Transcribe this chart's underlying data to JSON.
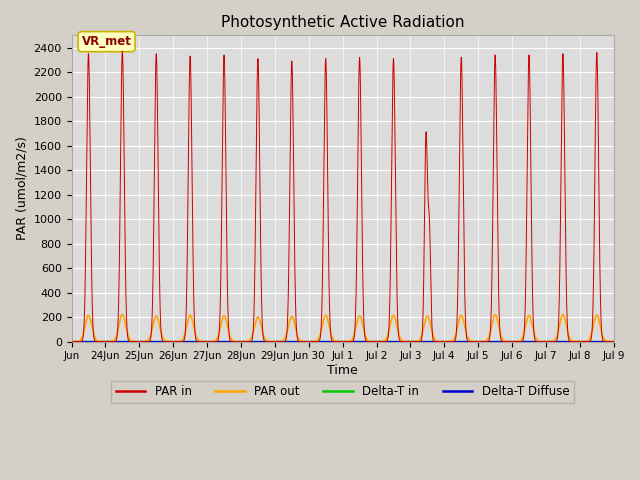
{
  "title": "Photosynthetic Active Radiation",
  "xlabel": "Time",
  "ylabel": "PAR (umol/m2/s)",
  "ylim": [
    0,
    2500
  ],
  "yticks": [
    0,
    200,
    400,
    600,
    800,
    1000,
    1200,
    1400,
    1600,
    1800,
    2000,
    2200,
    2400
  ],
  "fig_bg_color": "#d4d0c8",
  "plot_bg_color": "#dcdcdc",
  "legend_labels": [
    "PAR in",
    "PAR out",
    "Delta-T in",
    "Delta-T Diffuse"
  ],
  "legend_colors": [
    "#cc0000",
    "#ffa500",
    "#00cc00",
    "#0000cc"
  ],
  "vr_met_label": "VR_met",
  "vr_met_bg": "#ffffc0",
  "vr_met_border": "#c8b400",
  "vr_met_text_color": "#8b0000",
  "line_colors": {
    "PAR_in": "#cc0000",
    "PAR_out": "#ffa500",
    "Delta_T_in": "#00cc00",
    "Delta_T_Diffuse": "#0000cc"
  },
  "n_days": 16,
  "peaks_PAR_in": [
    2350,
    2370,
    2350,
    2330,
    2340,
    2310,
    2290,
    2310,
    2320,
    2310,
    1680,
    2320,
    2340,
    2340,
    2350,
    2360
  ],
  "peaks_PAR_out": [
    215,
    220,
    210,
    215,
    210,
    200,
    205,
    215,
    210,
    215,
    210,
    215,
    220,
    215,
    220,
    215
  ],
  "anomaly_day": 10,
  "sigma_in": 0.055,
  "sigma_out": 0.1,
  "tick_positions": [
    0,
    1,
    2,
    3,
    4,
    5,
    6,
    7,
    8,
    9,
    10,
    11,
    12,
    13,
    14,
    15,
    16
  ],
  "tick_labels": [
    "Jun",
    "24Jun",
    "25Jun",
    "26Jun",
    "27Jun",
    "28Jun",
    "29Jun",
    "Jun 30",
    "Jul 1",
    "Jul 2",
    "Jul 3",
    "Jul 4",
    "Jul 5",
    "Jul 6",
    "Jul 7",
    "Jul 8",
    "Jul 9"
  ]
}
